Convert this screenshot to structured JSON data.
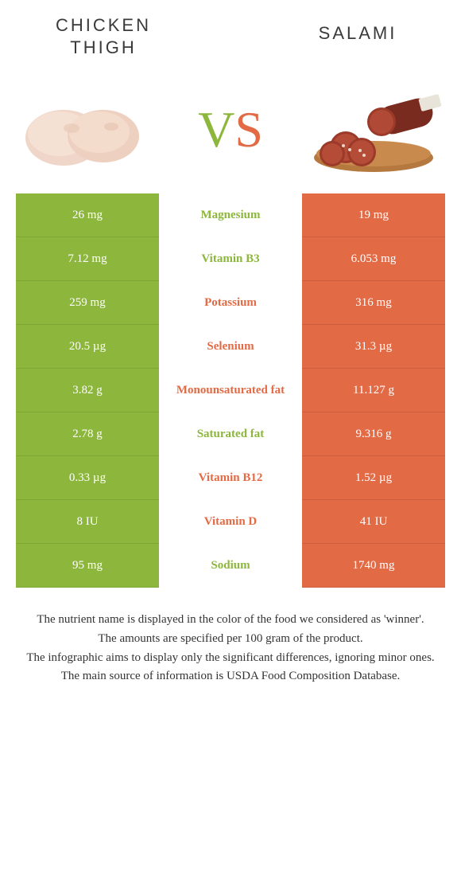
{
  "titles": {
    "left": "Chicken\nThigh",
    "right": "Salami"
  },
  "vs": {
    "v": "V",
    "s": "S"
  },
  "colors": {
    "green": "#8cb63c",
    "orange": "#e26a45",
    "bg": "#ffffff"
  },
  "rows": [
    {
      "left": "26 mg",
      "mid": "Magnesium",
      "right": "19 mg",
      "winner": "green"
    },
    {
      "left": "7.12 mg",
      "mid": "Vitamin B3",
      "right": "6.053 mg",
      "winner": "green"
    },
    {
      "left": "259 mg",
      "mid": "Potassium",
      "right": "316 mg",
      "winner": "orange"
    },
    {
      "left": "20.5 µg",
      "mid": "Selenium",
      "right": "31.3 µg",
      "winner": "orange"
    },
    {
      "left": "3.82 g",
      "mid": "Monounsaturated fat",
      "right": "11.127 g",
      "winner": "orange"
    },
    {
      "left": "2.78 g",
      "mid": "Saturated fat",
      "right": "9.316 g",
      "winner": "green"
    },
    {
      "left": "0.33 µg",
      "mid": "Vitamin B12",
      "right": "1.52 µg",
      "winner": "orange"
    },
    {
      "left": "8 IU",
      "mid": "Vitamin D",
      "right": "41 IU",
      "winner": "orange"
    },
    {
      "left": "95 mg",
      "mid": "Sodium",
      "right": "1740 mg",
      "winner": "green"
    }
  ],
  "footer": [
    "The nutrient name is displayed in the color of the food we considered as 'winner'.",
    "The amounts are specified per 100 gram of the product.",
    "The infographic aims to display only the significant differences, ignoring minor ones.",
    "The main source of information is USDA Food Composition Database."
  ]
}
